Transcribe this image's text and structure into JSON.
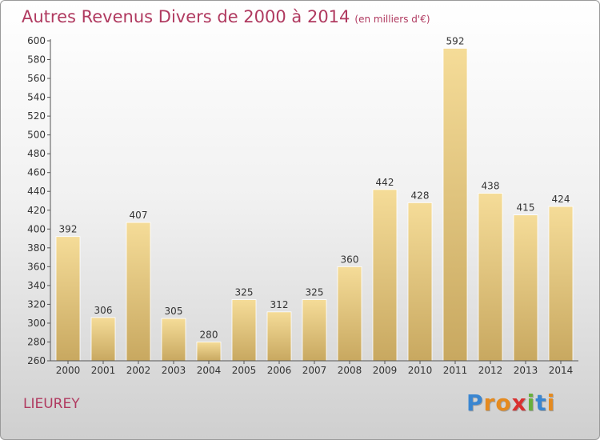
{
  "title": "Autres Revenus Divers de 2000 à 2014",
  "subtitle": "(en milliers d'€)",
  "commune": "LIEUREY",
  "logo": {
    "letters": [
      "P",
      "r",
      "o",
      "x",
      "i",
      "t",
      "i"
    ],
    "colors": [
      "#3a86d1",
      "#e58a1f",
      "#e58a1f",
      "#d93030",
      "#67b03c",
      "#3a86d1",
      "#e58a1f"
    ]
  },
  "chart_data": {
    "type": "bar",
    "categories": [
      "2000",
      "2001",
      "2002",
      "2003",
      "2004",
      "2005",
      "2006",
      "2007",
      "2008",
      "2009",
      "2010",
      "2011",
      "2012",
      "2013",
      "2014"
    ],
    "values": [
      392,
      306,
      407,
      305,
      280,
      325,
      312,
      325,
      360,
      442,
      428,
      592,
      438,
      415,
      424
    ],
    "ylim": [
      260,
      600
    ],
    "yticks": [
      260,
      280,
      300,
      320,
      340,
      360,
      380,
      400,
      420,
      440,
      460,
      480,
      500,
      520,
      540,
      560,
      580,
      600
    ],
    "grid": false,
    "bar_color_top": "#f5dc98",
    "bar_color_bottom": "#c8a860"
  }
}
